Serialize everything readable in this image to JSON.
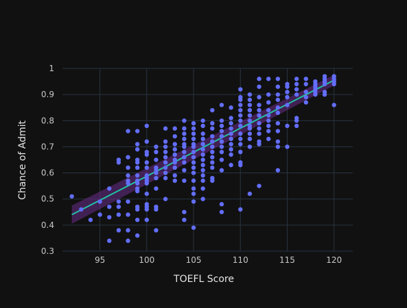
{
  "chart_data": {
    "type": "scatter",
    "title": "",
    "xlabel": "TOEFL Score",
    "ylabel": "Chance of Admit",
    "xlim": [
      91,
      122
    ],
    "ylim": [
      0.3,
      1.0
    ],
    "xticks": [
      95,
      100,
      105,
      110,
      115,
      120
    ],
    "yticks": [
      0.3,
      0.4,
      0.5,
      0.6,
      0.7,
      0.8,
      0.9,
      1
    ],
    "grid": true,
    "legend": "none",
    "colors": {
      "background": "#111111",
      "grid": "#283442",
      "points": "#636efa",
      "trend_line": "#21c2a4",
      "confidence_band": "#6a2d8a"
    },
    "series": [
      {
        "type": "scatter",
        "points": [
          [
            92,
            0.51
          ],
          [
            93,
            0.46
          ],
          [
            94,
            0.42
          ],
          [
            95,
            0.49
          ],
          [
            95,
            0.44
          ],
          [
            96,
            0.54
          ],
          [
            96,
            0.47
          ],
          [
            96,
            0.43
          ],
          [
            96,
            0.34
          ],
          [
            97,
            0.65
          ],
          [
            97,
            0.64
          ],
          [
            97,
            0.49
          ],
          [
            97,
            0.47
          ],
          [
            97,
            0.44
          ],
          [
            97,
            0.38
          ],
          [
            98,
            0.76
          ],
          [
            98,
            0.66
          ],
          [
            98,
            0.62
          ],
          [
            98,
            0.59
          ],
          [
            98,
            0.57
          ],
          [
            98,
            0.56
          ],
          [
            98,
            0.49
          ],
          [
            98,
            0.44
          ],
          [
            98,
            0.38
          ],
          [
            98,
            0.34
          ],
          [
            99,
            0.76
          ],
          [
            99,
            0.71
          ],
          [
            99,
            0.69
          ],
          [
            99,
            0.65
          ],
          [
            99,
            0.64
          ],
          [
            99,
            0.62
          ],
          [
            99,
            0.59
          ],
          [
            99,
            0.57
          ],
          [
            99,
            0.56
          ],
          [
            99,
            0.54
          ],
          [
            99,
            0.53
          ],
          [
            99,
            0.47
          ],
          [
            99,
            0.46
          ],
          [
            99,
            0.42
          ],
          [
            99,
            0.36
          ],
          [
            100,
            0.78
          ],
          [
            100,
            0.72
          ],
          [
            100,
            0.68
          ],
          [
            100,
            0.67
          ],
          [
            100,
            0.64
          ],
          [
            100,
            0.62
          ],
          [
            100,
            0.59
          ],
          [
            100,
            0.58
          ],
          [
            100,
            0.57
          ],
          [
            100,
            0.56
          ],
          [
            100,
            0.52
          ],
          [
            100,
            0.48
          ],
          [
            100,
            0.47
          ],
          [
            100,
            0.46
          ],
          [
            100,
            0.42
          ],
          [
            101,
            0.7
          ],
          [
            101,
            0.68
          ],
          [
            101,
            0.65
          ],
          [
            101,
            0.62
          ],
          [
            101,
            0.61
          ],
          [
            101,
            0.6
          ],
          [
            101,
            0.58
          ],
          [
            101,
            0.54
          ],
          [
            101,
            0.47
          ],
          [
            101,
            0.46
          ],
          [
            101,
            0.38
          ],
          [
            102,
            0.77
          ],
          [
            102,
            0.72
          ],
          [
            102,
            0.7
          ],
          [
            102,
            0.68
          ],
          [
            102,
            0.66
          ],
          [
            102,
            0.64
          ],
          [
            102,
            0.62
          ],
          [
            102,
            0.6
          ],
          [
            102,
            0.58
          ],
          [
            102,
            0.5
          ],
          [
            103,
            0.77
          ],
          [
            103,
            0.74
          ],
          [
            103,
            0.71
          ],
          [
            103,
            0.69
          ],
          [
            103,
            0.67
          ],
          [
            103,
            0.65
          ],
          [
            103,
            0.64
          ],
          [
            103,
            0.62
          ],
          [
            103,
            0.59
          ],
          [
            103,
            0.57
          ],
          [
            104,
            0.8
          ],
          [
            104,
            0.77
          ],
          [
            104,
            0.75
          ],
          [
            104,
            0.73
          ],
          [
            104,
            0.71
          ],
          [
            104,
            0.7
          ],
          [
            104,
            0.68
          ],
          [
            104,
            0.66
          ],
          [
            104,
            0.64
          ],
          [
            104,
            0.61
          ],
          [
            104,
            0.57
          ],
          [
            104,
            0.45
          ],
          [
            104,
            0.42
          ],
          [
            105,
            0.79
          ],
          [
            105,
            0.77
          ],
          [
            105,
            0.75
          ],
          [
            105,
            0.73
          ],
          [
            105,
            0.71
          ],
          [
            105,
            0.7
          ],
          [
            105,
            0.68
          ],
          [
            105,
            0.66
          ],
          [
            105,
            0.64
          ],
          [
            105,
            0.62
          ],
          [
            105,
            0.6
          ],
          [
            105,
            0.57
          ],
          [
            105,
            0.54
          ],
          [
            105,
            0.52
          ],
          [
            105,
            0.49
          ],
          [
            105,
            0.39
          ],
          [
            106,
            0.8
          ],
          [
            106,
            0.78
          ],
          [
            106,
            0.75
          ],
          [
            106,
            0.73
          ],
          [
            106,
            0.71
          ],
          [
            106,
            0.69
          ],
          [
            106,
            0.67
          ],
          [
            106,
            0.65
          ],
          [
            106,
            0.63
          ],
          [
            106,
            0.61
          ],
          [
            106,
            0.59
          ],
          [
            106,
            0.57
          ],
          [
            106,
            0.54
          ],
          [
            106,
            0.5
          ],
          [
            107,
            0.84
          ],
          [
            107,
            0.79
          ],
          [
            107,
            0.77
          ],
          [
            107,
            0.74
          ],
          [
            107,
            0.72
          ],
          [
            107,
            0.7
          ],
          [
            107,
            0.68
          ],
          [
            107,
            0.66
          ],
          [
            107,
            0.64
          ],
          [
            107,
            0.62
          ],
          [
            107,
            0.58
          ],
          [
            107,
            0.57
          ],
          [
            108,
            0.86
          ],
          [
            108,
            0.8
          ],
          [
            108,
            0.78
          ],
          [
            108,
            0.76
          ],
          [
            108,
            0.74
          ],
          [
            108,
            0.72
          ],
          [
            108,
            0.7
          ],
          [
            108,
            0.68
          ],
          [
            108,
            0.65
          ],
          [
            108,
            0.61
          ],
          [
            108,
            0.48
          ],
          [
            108,
            0.45
          ],
          [
            109,
            0.85
          ],
          [
            109,
            0.81
          ],
          [
            109,
            0.79
          ],
          [
            109,
            0.77
          ],
          [
            109,
            0.75
          ],
          [
            109,
            0.73
          ],
          [
            109,
            0.71
          ],
          [
            109,
            0.69
          ],
          [
            109,
            0.67
          ],
          [
            109,
            0.63
          ],
          [
            110,
            0.92
          ],
          [
            110,
            0.89
          ],
          [
            110,
            0.88
          ],
          [
            110,
            0.86
          ],
          [
            110,
            0.84
          ],
          [
            110,
            0.82
          ],
          [
            110,
            0.8
          ],
          [
            110,
            0.78
          ],
          [
            110,
            0.75
          ],
          [
            110,
            0.73
          ],
          [
            110,
            0.71
          ],
          [
            110,
            0.68
          ],
          [
            110,
            0.64
          ],
          [
            110,
            0.63
          ],
          [
            110,
            0.46
          ],
          [
            111,
            0.9
          ],
          [
            111,
            0.88
          ],
          [
            111,
            0.86
          ],
          [
            111,
            0.84
          ],
          [
            111,
            0.82
          ],
          [
            111,
            0.8
          ],
          [
            111,
            0.78
          ],
          [
            111,
            0.77
          ],
          [
            111,
            0.75
          ],
          [
            111,
            0.73
          ],
          [
            111,
            0.7
          ],
          [
            111,
            0.52
          ],
          [
            112,
            0.96
          ],
          [
            112,
            0.93
          ],
          [
            112,
            0.89
          ],
          [
            112,
            0.86
          ],
          [
            112,
            0.84
          ],
          [
            112,
            0.82
          ],
          [
            112,
            0.79
          ],
          [
            112,
            0.77
          ],
          [
            112,
            0.75
          ],
          [
            112,
            0.72
          ],
          [
            112,
            0.71
          ],
          [
            112,
            0.55
          ],
          [
            113,
            0.96
          ],
          [
            113,
            0.9
          ],
          [
            113,
            0.87
          ],
          [
            113,
            0.84
          ],
          [
            113,
            0.82
          ],
          [
            113,
            0.8
          ],
          [
            113,
            0.78
          ],
          [
            113,
            0.76
          ],
          [
            113,
            0.73
          ],
          [
            114,
            0.96
          ],
          [
            114,
            0.93
          ],
          [
            114,
            0.9
          ],
          [
            114,
            0.88
          ],
          [
            114,
            0.85
          ],
          [
            114,
            0.83
          ],
          [
            114,
            0.79
          ],
          [
            114,
            0.76
          ],
          [
            114,
            0.72
          ],
          [
            114,
            0.7
          ],
          [
            114,
            0.61
          ],
          [
            115,
            0.94
          ],
          [
            115,
            0.93
          ],
          [
            115,
            0.91
          ],
          [
            115,
            0.89
          ],
          [
            115,
            0.86
          ],
          [
            115,
            0.78
          ],
          [
            115,
            0.7
          ],
          [
            116,
            0.96
          ],
          [
            116,
            0.94
          ],
          [
            116,
            0.92
          ],
          [
            116,
            0.9
          ],
          [
            116,
            0.81
          ],
          [
            116,
            0.8
          ],
          [
            116,
            0.78
          ],
          [
            117,
            0.96
          ],
          [
            117,
            0.94
          ],
          [
            117,
            0.91
          ],
          [
            117,
            0.89
          ],
          [
            117,
            0.87
          ],
          [
            118,
            0.95
          ],
          [
            118,
            0.94
          ],
          [
            118,
            0.93
          ],
          [
            118,
            0.92
          ],
          [
            118,
            0.91
          ],
          [
            118,
            0.9
          ],
          [
            119,
            0.97
          ],
          [
            119,
            0.96
          ],
          [
            119,
            0.95
          ],
          [
            119,
            0.94
          ],
          [
            119,
            0.91
          ],
          [
            119,
            0.9
          ],
          [
            120,
            0.97
          ],
          [
            120,
            0.96
          ],
          [
            120,
            0.95
          ],
          [
            120,
            0.94
          ],
          [
            120,
            0.86
          ]
        ]
      },
      {
        "type": "line",
        "x": [
          92,
          120
        ],
        "y": [
          0.44,
          0.955
        ],
        "band_lower": [
          0.405,
          0.935
        ],
        "band_upper": [
          0.475,
          0.975
        ]
      }
    ]
  }
}
